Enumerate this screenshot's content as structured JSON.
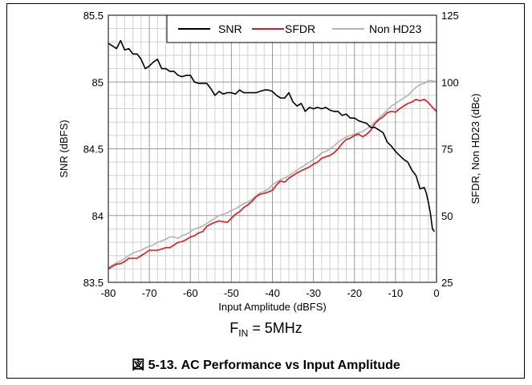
{
  "chart_data": {
    "type": "line",
    "xlabel": "Input Amplitude (dBFS)",
    "ylabel_left": "SNR (dBFS)",
    "ylabel_right": "SFDR, Non HD23 (dBc)",
    "xlim": [
      -80,
      0
    ],
    "ylim_left": [
      83.5,
      85.5
    ],
    "ylim_right": [
      25,
      125
    ],
    "x_ticks": [
      "-80",
      "-70",
      "-60",
      "-50",
      "-40",
      "-30",
      "-20",
      "-10",
      "0"
    ],
    "y_left_ticks": [
      "83.5",
      "84",
      "84.5",
      "85",
      "85.5"
    ],
    "y_right_ticks": [
      "25",
      "50",
      "75",
      "100",
      "125"
    ],
    "grid": true,
    "legend_position": "top-right",
    "series": [
      {
        "name": "SNR",
        "axis": "left",
        "color": "#000000",
        "x": [
          -80,
          -78,
          -77,
          -76,
          -75,
          -74,
          -73,
          -72,
          -71,
          -70,
          -69,
          -68,
          -67,
          -66,
          -65,
          -64,
          -63,
          -62,
          -61,
          -60,
          -59,
          -58,
          -57,
          -56,
          -55,
          -54,
          -53,
          -52,
          -51,
          -50,
          -49,
          -48,
          -47,
          -46,
          -45,
          -44,
          -43,
          -42,
          -41,
          -40,
          -39,
          -38,
          -37,
          -36,
          -35,
          -34,
          -33,
          -32,
          -31,
          -30,
          -29,
          -28,
          -27,
          -26,
          -25,
          -24,
          -23,
          -22,
          -21,
          -20,
          -19,
          -18,
          -17,
          -16,
          -15,
          -14,
          -13,
          -12,
          -11,
          -10,
          -9,
          -8,
          -7,
          -6,
          -5,
          -4,
          -3,
          -2.5,
          -2,
          -1.5,
          -1,
          -0.5
        ],
        "values": [
          85.29,
          85.25,
          85.31,
          85.24,
          85.25,
          85.21,
          85.21,
          85.17,
          85.1,
          85.12,
          85.15,
          85.17,
          85.1,
          85.1,
          85.08,
          85.08,
          85.05,
          85.04,
          85.05,
          85.05,
          85.0,
          84.99,
          84.99,
          84.99,
          84.95,
          84.9,
          84.93,
          84.91,
          84.92,
          84.92,
          84.91,
          84.94,
          84.92,
          84.92,
          84.92,
          84.92,
          84.93,
          84.94,
          84.94,
          84.93,
          84.9,
          84.88,
          84.88,
          84.92,
          84.85,
          84.82,
          84.84,
          84.78,
          84.81,
          84.8,
          84.81,
          84.8,
          84.81,
          84.79,
          84.78,
          84.78,
          84.75,
          84.76,
          84.73,
          84.73,
          84.71,
          84.7,
          84.69,
          84.66,
          84.66,
          84.64,
          84.62,
          84.55,
          84.52,
          84.48,
          84.45,
          84.42,
          84.4,
          84.34,
          84.3,
          84.2,
          84.21,
          84.17,
          84.1,
          84.02,
          83.9,
          83.88
        ]
      },
      {
        "name": "SFDR",
        "axis": "right",
        "color": "#e8141b",
        "x": [
          -80,
          -79,
          -78,
          -77,
          -76,
          -75,
          -74,
          -73,
          -72,
          -71,
          -70,
          -69,
          -68,
          -67,
          -66,
          -65,
          -64,
          -63,
          -62,
          -61,
          -60,
          -59,
          -58,
          -57,
          -56,
          -55,
          -54,
          -53,
          -52,
          -51,
          -50,
          -49,
          -48,
          -47,
          -46,
          -45,
          -44,
          -43,
          -42,
          -41,
          -40,
          -39,
          -38,
          -37,
          -36,
          -35,
          -34,
          -33,
          -32,
          -31,
          -30,
          -29,
          -28,
          -27,
          -26,
          -25,
          -24,
          -23,
          -22,
          -21,
          -20,
          -19,
          -18,
          -17,
          -16,
          -15,
          -14,
          -13,
          -12,
          -11,
          -10,
          -9,
          -8,
          -7,
          -6,
          -5,
          -4,
          -3,
          -2,
          -1,
          0
        ],
        "values": [
          30.0,
          31.0,
          31.8,
          32.0,
          32.8,
          34.0,
          34.0,
          34.0,
          35.0,
          36.0,
          37.0,
          37.0,
          37.0,
          37.5,
          38.0,
          38.0,
          39.0,
          40.0,
          40.3,
          41.0,
          42.0,
          42.5,
          43.5,
          44.0,
          46.0,
          46.8,
          47.5,
          48.0,
          47.7,
          47.5,
          49.0,
          50.5,
          51.5,
          53.0,
          54.0,
          55.3,
          57.0,
          58.0,
          58.3,
          58.8,
          59.5,
          61.5,
          63.0,
          62.5,
          64.0,
          65.0,
          66.0,
          66.8,
          67.5,
          68.2,
          69.3,
          70.0,
          71.5,
          72.0,
          72.5,
          73.5,
          75.0,
          77.0,
          78.5,
          79.0,
          80.0,
          80.5,
          79.5,
          80.5,
          82.0,
          84.5,
          86.0,
          87.0,
          88.5,
          89.0,
          88.7,
          90.0,
          91.0,
          92.0,
          92.5,
          93.5,
          93.0,
          93.5,
          92.3,
          90.5,
          89.0
        ]
      },
      {
        "name": "Non HD23",
        "axis": "right",
        "color": "#b3b3b3",
        "x": [
          -80,
          -79,
          -78,
          -77,
          -76,
          -75,
          -74,
          -73,
          -72,
          -71,
          -70,
          -69,
          -68,
          -67,
          -66,
          -65,
          -64,
          -63,
          -62,
          -61,
          -60,
          -59,
          -58,
          -57,
          -56,
          -55,
          -54,
          -53,
          -52,
          -51,
          -50,
          -49,
          -48,
          -47,
          -46,
          -45,
          -44,
          -43,
          -42,
          -41,
          -40,
          -39,
          -38,
          -37,
          -36,
          -35,
          -34,
          -33,
          -32,
          -31,
          -30,
          -29,
          -28,
          -27,
          -26,
          -25,
          -24,
          -23,
          -22,
          -21,
          -20,
          -19,
          -18,
          -17,
          -16,
          -15,
          -14,
          -13,
          -12,
          -11,
          -10,
          -9,
          -8,
          -7,
          -6,
          -5,
          -4,
          -3,
          -2,
          -1,
          0
        ],
        "values": [
          30.5,
          31.5,
          32.3,
          33.0,
          34.0,
          35.0,
          36.0,
          36.5,
          37.0,
          37.8,
          38.5,
          39.0,
          40.0,
          40.5,
          41.2,
          42.0,
          42.0,
          41.5,
          42.5,
          43.0,
          44.0,
          45.0,
          45.5,
          46.0,
          47.0,
          48.0,
          49.0,
          50.0,
          50.5,
          51.0,
          52.0,
          52.5,
          53.5,
          54.5,
          55.0,
          56.0,
          57.5,
          58.5,
          59.0,
          60.0,
          61.5,
          62.5,
          63.5,
          64.0,
          65.0,
          66.0,
          67.0,
          68.0,
          69.0,
          70.0,
          71.0,
          72.0,
          73.5,
          74.0,
          75.0,
          76.0,
          77.5,
          78.5,
          79.5,
          80.0,
          80.5,
          81.0,
          81.5,
          82.5,
          83.5,
          85.0,
          86.5,
          88.0,
          89.5,
          91.0,
          92.0,
          93.0,
          94.0,
          95.0,
          96.5,
          98.0,
          99.0,
          99.5,
          100.5,
          100.5,
          100.0
        ]
      }
    ]
  },
  "caption": {
    "fin_main": "F",
    "fin_sub": "IN",
    "fin_rest": " = 5MHz",
    "figure_label": "図 5-13. AC Performance vs Input Amplitude"
  }
}
